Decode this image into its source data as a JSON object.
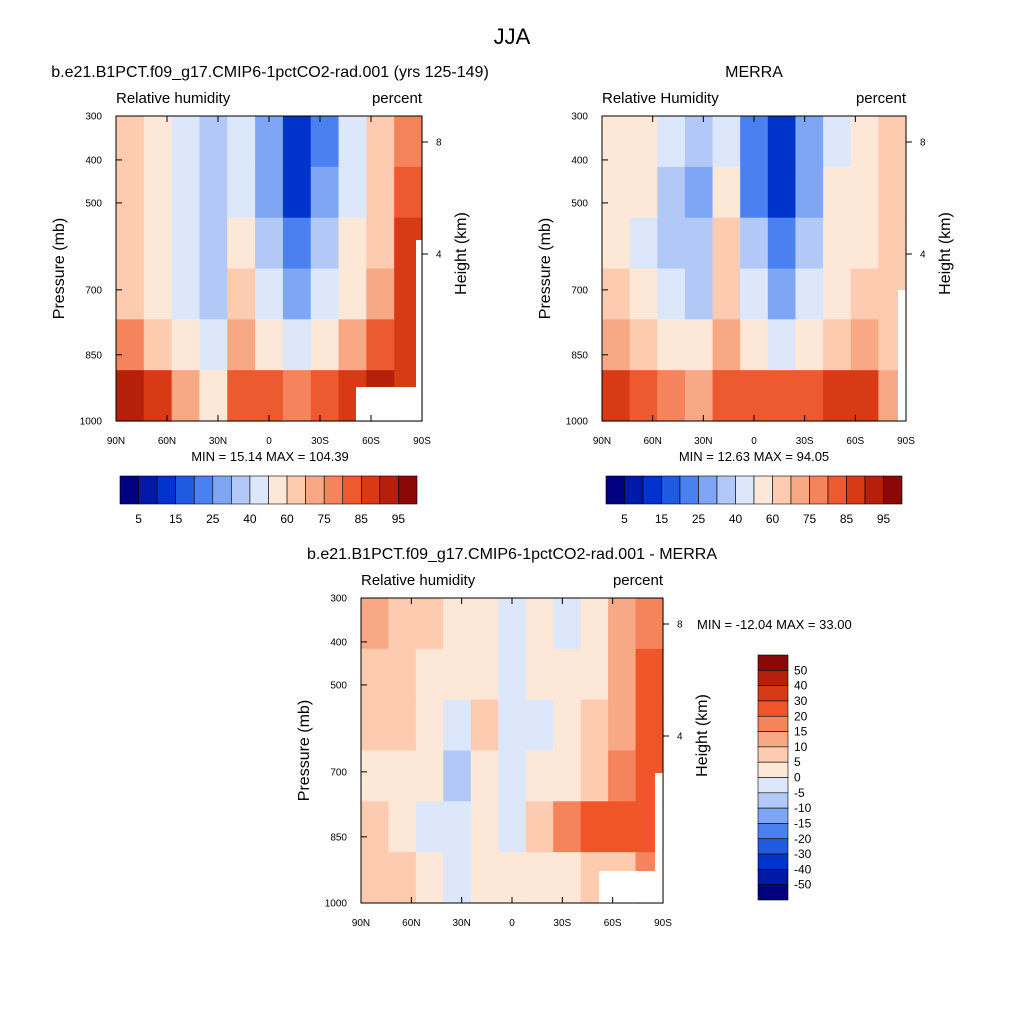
{
  "figure_title": "JJA",
  "chart_data": [
    {
      "type": "heatmap",
      "title": "b.e21.B1PCT.f09_g17.CMIP6-1pctCO2-rad.001 (yrs 125-149)",
      "left_subtitle": "Relative humidity",
      "right_subtitle": "percent",
      "ylabel": "Pressure (mb)",
      "right_ylabel": "Height (km)",
      "x_ticks": [
        "90N",
        "60N",
        "30N",
        "0",
        "30S",
        "60S",
        "90S"
      ],
      "y_ticks": [
        "300",
        "400",
        "500",
        "700",
        "850",
        "1000"
      ],
      "height_ticks": [
        "8",
        "4"
      ],
      "min_label": "MIN =",
      "min_value": "15.14",
      "max_label": "MAX =",
      "max_value": "104.39",
      "colorbar_labels": [
        "5",
        "15",
        "25",
        "40",
        "60",
        "75",
        "85",
        "95"
      ],
      "grid": "contour-fill",
      "values": [
        [
          65,
          55,
          45,
          35,
          45,
          25,
          12,
          22,
          45,
          60,
          75
        ],
        [
          65,
          55,
          45,
          35,
          45,
          28,
          14,
          25,
          45,
          65,
          80
        ],
        [
          60,
          50,
          40,
          30,
          55,
          32,
          20,
          30,
          50,
          65,
          85
        ],
        [
          62,
          52,
          40,
          35,
          65,
          40,
          25,
          40,
          55,
          70,
          85
        ],
        [
          75,
          65,
          50,
          40,
          70,
          55,
          40,
          55,
          70,
          80,
          88
        ],
        [
          90,
          85,
          70,
          55,
          80,
          80,
          75,
          80,
          88,
          92,
          85
        ]
      ]
    },
    {
      "type": "heatmap",
      "title": "MERRA",
      "left_subtitle": "Relative Humidity",
      "right_subtitle": "percent",
      "ylabel": "Pressure (mb)",
      "right_ylabel": "Height (km)",
      "x_ticks": [
        "90N",
        "60N",
        "30N",
        "0",
        "30S",
        "60S",
        "90S"
      ],
      "y_ticks": [
        "300",
        "400",
        "500",
        "700",
        "850",
        "1000"
      ],
      "height_ticks": [
        "8",
        "4"
      ],
      "min_label": "MIN =",
      "min_value": "12.63",
      "max_label": "MAX =",
      "max_value": "94.05",
      "colorbar_labels": [
        "5",
        "15",
        "25",
        "40",
        "60",
        "75",
        "85",
        "95"
      ],
      "grid": "contour-fill",
      "values": [
        [
          55,
          50,
          40,
          30,
          45,
          20,
          10,
          25,
          45,
          55,
          60
        ],
        [
          58,
          50,
          38,
          28,
          50,
          22,
          12,
          25,
          50,
          55,
          60
        ],
        [
          55,
          48,
          38,
          32,
          60,
          30,
          20,
          32,
          50,
          58,
          62
        ],
        [
          60,
          50,
          40,
          38,
          65,
          40,
          28,
          40,
          55,
          62,
          65
        ],
        [
          72,
          65,
          55,
          50,
          70,
          58,
          45,
          55,
          68,
          72,
          60
        ],
        [
          85,
          80,
          75,
          72,
          82,
          80,
          80,
          82,
          85,
          88,
          70
        ]
      ]
    },
    {
      "type": "heatmap",
      "title": "b.e21.B1PCT.f09_g17.CMIP6-1pctCO2-rad.001 - MERRA",
      "left_subtitle": "Relative humidity",
      "right_subtitle": "percent",
      "ylabel": "Pressure (mb)",
      "right_ylabel": "Height (km)",
      "x_ticks": [
        "90N",
        "60N",
        "30N",
        "0",
        "30S",
        "60S",
        "90S"
      ],
      "y_ticks": [
        "300",
        "400",
        "500",
        "700",
        "850",
        "1000"
      ],
      "height_ticks": [
        "8",
        "4"
      ],
      "min_label": "MIN =",
      "min_value": "-12.04",
      "max_label": "MAX =",
      "max_value": "33.00",
      "colorbar_labels": [
        "50",
        "40",
        "30",
        "20",
        "15",
        "10",
        "5",
        "0",
        "-5",
        "-10",
        "-15",
        "-20",
        "-30",
        "-40",
        "-50"
      ],
      "grid": "contour-fill",
      "values": [
        [
          12,
          5,
          5,
          3,
          0,
          -5,
          2,
          -2,
          3,
          10,
          15
        ],
        [
          8,
          5,
          3,
          2,
          2,
          -3,
          0,
          0,
          2,
          12,
          20
        ],
        [
          5,
          5,
          3,
          -5,
          5,
          -3,
          -2,
          3,
          5,
          12,
          22
        ],
        [
          3,
          3,
          0,
          -8,
          3,
          -5,
          0,
          2,
          5,
          15,
          20
        ],
        [
          5,
          2,
          -3,
          -5,
          2,
          -3,
          8,
          15,
          25,
          22,
          25
        ],
        [
          5,
          5,
          0,
          -2,
          0,
          3,
          2,
          3,
          5,
          8,
          15
        ]
      ]
    }
  ],
  "palettes": {
    "humidity": [
      "#000080",
      "#0019a8",
      "#0033cc",
      "#1e5be0",
      "#4a80f0",
      "#7fa6f5",
      "#b2c8f7",
      "#dce7fb",
      "#fde8d8",
      "#fdcbb0",
      "#f9a885",
      "#f5835c",
      "#ee5a30",
      "#d73a14",
      "#b61f0a",
      "#8a0808"
    ],
    "diff": [
      "#8a0808",
      "#b61f0a",
      "#d73a14",
      "#f0552a",
      "#f5835c",
      "#f9a885",
      "#fdcbb0",
      "#fde8d8",
      "#dce7fb",
      "#b2c8f7",
      "#7fa6f5",
      "#4a80f0",
      "#1e5be0",
      "#0033cc",
      "#0019a8",
      "#000080"
    ]
  }
}
